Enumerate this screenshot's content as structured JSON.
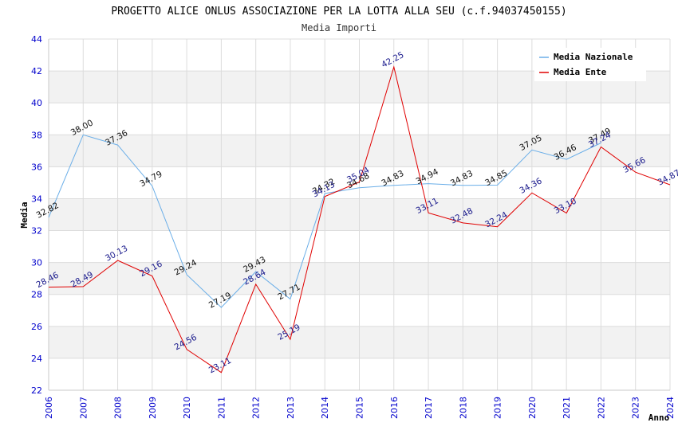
{
  "chart_data": {
    "type": "line",
    "title": "PROGETTO ALICE ONLUS ASSOCIAZIONE PER LA LOTTA ALLA SEU (c.f.94037450155)",
    "subtitle": "Media Importi",
    "xlabel": "Anno",
    "ylabel": "Media",
    "ylim": [
      22,
      44
    ],
    "yticks": [
      "22",
      "24",
      "26",
      "28",
      "30",
      "32",
      "34",
      "36",
      "38",
      "40",
      "42",
      "44"
    ],
    "categories": [
      "2006",
      "2007",
      "2008",
      "2009",
      "2010",
      "2011",
      "2012",
      "2013",
      "2014",
      "2015",
      "2016",
      "2017",
      "2018",
      "2019",
      "2020",
      "2021",
      "2022",
      "2023",
      "2024"
    ],
    "series": [
      {
        "name": "Media Nazionale",
        "color": "#6aaee8",
        "values": [
          32.82,
          38.0,
          37.36,
          34.79,
          29.24,
          27.19,
          29.43,
          27.71,
          34.32,
          34.68,
          34.83,
          34.94,
          34.83,
          34.85,
          37.05,
          36.46,
          37.49,
          null,
          null
        ],
        "labels": [
          "32.82",
          "38.00",
          "37.36",
          "34.79",
          "29.24",
          "27.19",
          "29.43",
          "27.71",
          "34.32",
          "34.68",
          "34.83",
          "34.94",
          "34.83",
          "34.85",
          "37.05",
          "36.46",
          "37.49",
          "",
          ""
        ]
      },
      {
        "name": "Media Ente",
        "color": "#e00000",
        "values": [
          28.46,
          28.49,
          30.13,
          29.16,
          24.56,
          23.11,
          28.64,
          25.19,
          34.13,
          35.04,
          42.25,
          33.11,
          32.48,
          32.24,
          34.36,
          33.1,
          37.24,
          35.66,
          34.87
        ],
        "labels": [
          "28.46",
          "28.49",
          "30.13",
          "29.16",
          "24.56",
          "23.11",
          "28.64",
          "25.19",
          "34.13",
          "35.04",
          "42.25",
          "33.11",
          "32.48",
          "32.24",
          "34.36",
          "33.10",
          "37.24",
          "35.66",
          "34.87"
        ]
      }
    ],
    "legend_position": "top-right",
    "grid": true
  }
}
